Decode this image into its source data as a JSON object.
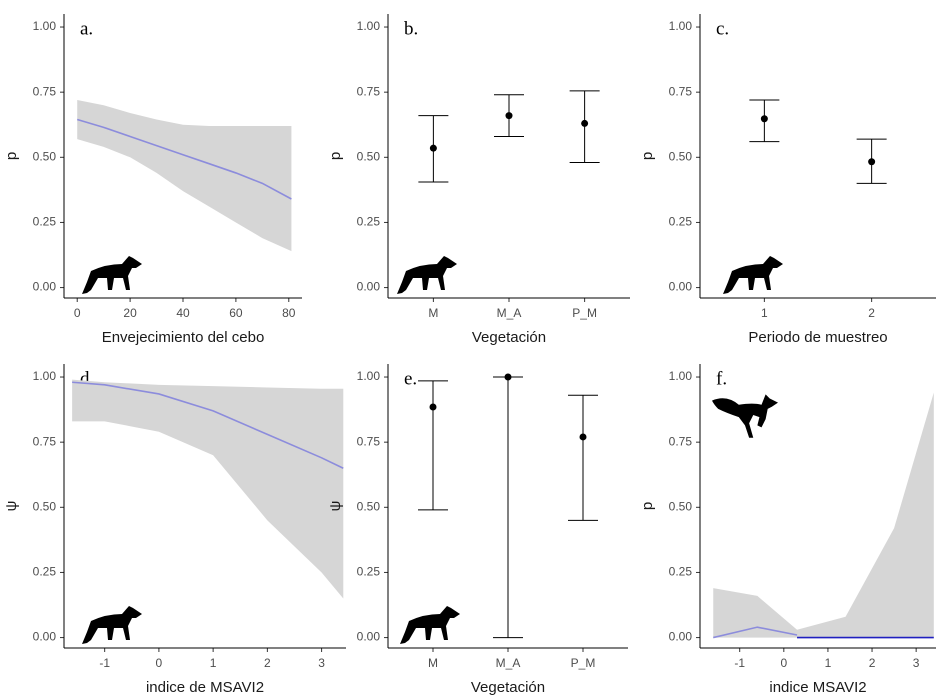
{
  "chart_data": [
    {
      "type": "line",
      "panel_label": "a.",
      "y_label": "p",
      "x_label": "Envejecimiento del cebo",
      "x": [
        0,
        10,
        20,
        30,
        40,
        50,
        60,
        70,
        81
      ],
      "xlim": [
        -5,
        85
      ],
      "xticks": [
        0,
        20,
        40,
        60,
        80
      ],
      "series": [
        {
          "color": "#8c8cdc",
          "values": [
            0.645,
            0.615,
            0.58,
            0.545,
            0.51,
            0.475,
            0.44,
            0.4,
            0.34
          ]
        }
      ],
      "upper": [
        0.72,
        0.7,
        0.67,
        0.645,
        0.625,
        0.62,
        0.62,
        0.62,
        0.62
      ],
      "lower": [
        0.57,
        0.54,
        0.5,
        0.44,
        0.37,
        0.31,
        0.25,
        0.19,
        0.14
      ],
      "ribbon_color": "#d6d6d6",
      "ylim": [
        -0.04,
        1.05
      ],
      "yticks": [
        {
          "value": 0,
          "label": "0.00"
        },
        {
          "value": 0.25,
          "label": "0.25"
        },
        {
          "value": 0.5,
          "label": "0.50"
        },
        {
          "value": 0.75,
          "label": "0.75"
        },
        {
          "value": 1,
          "label": "1.00"
        }
      ]
    },
    {
      "type": "errorbar",
      "panel_label": "b.",
      "y_label": "p",
      "x_label": "Vegetación",
      "categories": [
        "M",
        "M_A",
        "P_M"
      ],
      "values": [
        0.535,
        0.66,
        0.63
      ],
      "lower": [
        0.405,
        0.58,
        0.48
      ],
      "upper": [
        0.66,
        0.74,
        0.755
      ],
      "ylim": [
        -0.04,
        1.05
      ],
      "yticks": [
        {
          "value": 0,
          "label": "0.00"
        },
        {
          "value": 0.25,
          "label": "0.25"
        },
        {
          "value": 0.5,
          "label": "0.50"
        },
        {
          "value": 0.75,
          "label": "0.75"
        },
        {
          "value": 1,
          "label": "1.00"
        }
      ]
    },
    {
      "type": "errorbar",
      "panel_label": "c.",
      "y_label": "p",
      "x_label": "Periodo de muestreo",
      "categories": [
        "1",
        "2"
      ],
      "values": [
        0.648,
        0.483
      ],
      "lower": [
        0.56,
        0.4
      ],
      "upper": [
        0.72,
        0.57
      ],
      "ylim": [
        -0.04,
        1.05
      ],
      "yticks": [
        {
          "value": 0,
          "label": "0.00"
        },
        {
          "value": 0.25,
          "label": "0.25"
        },
        {
          "value": 0.5,
          "label": "0.50"
        },
        {
          "value": 0.75,
          "label": "0.75"
        },
        {
          "value": 1,
          "label": "1.00"
        }
      ]
    },
    {
      "type": "line",
      "panel_label": "d.",
      "y_label": "ψ",
      "x_label": "indice de MSAVI2",
      "x": [
        -1.6,
        -1,
        0,
        1,
        2,
        3,
        3.4
      ],
      "xlim": [
        -1.75,
        3.45
      ],
      "xticks": [
        -1,
        0,
        1,
        2,
        3
      ],
      "series": [
        {
          "color": "#8c8cdc",
          "values": [
            0.98,
            0.97,
            0.935,
            0.87,
            0.78,
            0.69,
            0.65
          ]
        }
      ],
      "upper": [
        0.99,
        0.98,
        0.97,
        0.965,
        0.96,
        0.955,
        0.955
      ],
      "lower": [
        0.83,
        0.83,
        0.79,
        0.7,
        0.45,
        0.25,
        0.15
      ],
      "ribbon_color": "#d6d6d6",
      "ylim": [
        -0.04,
        1.05
      ],
      "yticks": [
        {
          "value": 0,
          "label": "0.00"
        },
        {
          "value": 0.25,
          "label": "0.25"
        },
        {
          "value": 0.5,
          "label": "0.50"
        },
        {
          "value": 0.75,
          "label": "0.75"
        },
        {
          "value": 1,
          "label": "1.00"
        }
      ]
    },
    {
      "type": "errorbar",
      "panel_label": "e.",
      "y_label": "ψ",
      "x_label": "Vegetación",
      "categories": [
        "M",
        "M_A",
        "P_M"
      ],
      "values": [
        0.885,
        1.0,
        0.77
      ],
      "lower": [
        0.49,
        0.0,
        0.45
      ],
      "upper": [
        0.985,
        1.0,
        0.93
      ],
      "ylim": [
        -0.04,
        1.05
      ],
      "yticks": [
        {
          "value": 0,
          "label": "0.00"
        },
        {
          "value": 0.25,
          "label": "0.25"
        },
        {
          "value": 0.5,
          "label": "0.50"
        },
        {
          "value": 0.75,
          "label": "0.75"
        },
        {
          "value": 1,
          "label": "1.00"
        }
      ]
    },
    {
      "type": "line",
      "panel_label": "f.",
      "y_label": "p",
      "x_label": "indice MSAVI2",
      "x": [
        -1.6,
        -0.6,
        0.3,
        1.4,
        2.5,
        3.4
      ],
      "xlim": [
        -1.9,
        3.45
      ],
      "xticks": [
        -1,
        0,
        1,
        2,
        3
      ],
      "series": [
        {
          "color": "#8c8cdc",
          "values": [
            0.0,
            0.04,
            0.01,
            null,
            null,
            null
          ]
        },
        {
          "color": "#2020c0",
          "values": [
            null,
            null,
            0.0,
            0.0,
            0.0,
            0.0
          ]
        }
      ],
      "upper": [
        0.19,
        0.16,
        0.03,
        0.08,
        0.42,
        0.94
      ],
      "lower": [
        0,
        0,
        0,
        0,
        0,
        0
      ],
      "ribbon_color": "#d6d6d6",
      "ylim": [
        -0.04,
        1.05
      ],
      "yticks": [
        {
          "value": 0,
          "label": "0.00"
        },
        {
          "value": 0.25,
          "label": "0.25"
        },
        {
          "value": 0.5,
          "label": "0.50"
        },
        {
          "value": 0.75,
          "label": "0.75"
        },
        {
          "value": 1,
          "label": "1.00"
        }
      ]
    }
  ]
}
